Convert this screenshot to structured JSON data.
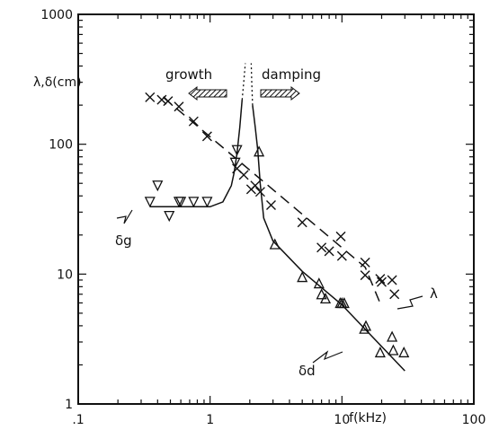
{
  "chart_data": {
    "type": "scatter",
    "title": "",
    "xlabel": "f(kHz)",
    "ylabel": "λ,δ(cm)",
    "xscale": "log",
    "yscale": "log",
    "xlim": [
      0.1,
      100
    ],
    "ylim": [
      1,
      1000
    ],
    "grid": false,
    "x_tick_labels": [
      ".1",
      "1",
      "10",
      "100"
    ],
    "y_tick_labels": [
      "1",
      "10",
      "100",
      "1000"
    ],
    "x_ticks": [
      0.1,
      1,
      10,
      100
    ],
    "y_ticks": [
      1,
      10,
      100,
      1000
    ],
    "annotations": {
      "growth": "growth",
      "damping": "damping",
      "delta_g": "δg",
      "delta_d": "δd",
      "lambda": "λ"
    },
    "series": [
      {
        "name": "λ",
        "marker": "x",
        "points": [
          [
            0.35,
            230
          ],
          [
            0.43,
            220
          ],
          [
            0.48,
            215
          ],
          [
            0.58,
            195
          ],
          [
            0.75,
            150
          ],
          [
            0.95,
            115
          ],
          [
            1.6,
            65
          ],
          [
            1.8,
            58
          ],
          [
            2.05,
            45
          ],
          [
            2.2,
            48
          ],
          [
            2.4,
            43
          ],
          [
            2.9,
            34
          ],
          [
            5.0,
            25
          ],
          [
            7.0,
            16
          ],
          [
            8.0,
            15
          ],
          [
            9.8,
            19.5
          ],
          [
            10,
            13.8
          ],
          [
            15,
            12.3
          ],
          [
            15,
            9.8
          ],
          [
            19.5,
            9.2
          ],
          [
            20,
            8.7
          ],
          [
            24,
            9
          ],
          [
            25,
            7
          ]
        ]
      },
      {
        "name": "δg",
        "marker": "triangle-down",
        "points": [
          [
            0.35,
            36
          ],
          [
            0.4,
            48
          ],
          [
            0.49,
            28
          ],
          [
            0.58,
            36
          ],
          [
            0.6,
            36
          ],
          [
            0.75,
            36
          ],
          [
            0.95,
            36
          ],
          [
            1.55,
            72
          ],
          [
            1.6,
            90
          ]
        ]
      },
      {
        "name": "δd",
        "marker": "triangle-up",
        "points": [
          [
            2.35,
            88
          ],
          [
            3.1,
            17
          ],
          [
            5.0,
            9.5
          ],
          [
            6.7,
            8.5
          ],
          [
            7.0,
            7
          ],
          [
            7.5,
            6.5
          ],
          [
            9.7,
            6
          ],
          [
            10,
            6
          ],
          [
            10.4,
            6
          ],
          [
            14.8,
            3.8
          ],
          [
            15.2,
            4
          ],
          [
            19.5,
            2.5
          ],
          [
            24,
            3.3
          ],
          [
            24.5,
            2.6
          ],
          [
            29.5,
            2.5
          ]
        ]
      },
      {
        "name": "λ fit",
        "style": "dashed",
        "points": [
          [
            0.44,
            230
          ],
          [
            15,
            11.3
          ],
          [
            20,
            5.6
          ]
        ]
      },
      {
        "name": "δg fit",
        "style": "solid",
        "points": [
          [
            0.35,
            33
          ],
          [
            1.0,
            33
          ],
          [
            1.25,
            36
          ],
          [
            1.45,
            48
          ],
          [
            1.52,
            60
          ],
          [
            1.6,
            85
          ],
          [
            1.68,
            135
          ],
          [
            1.75,
            220
          ]
        ]
      },
      {
        "name": "δd fit",
        "style": "solid",
        "points": [
          [
            2.1,
            200
          ],
          [
            2.2,
            135
          ],
          [
            2.3,
            90
          ],
          [
            2.4,
            50
          ],
          [
            2.55,
            27
          ],
          [
            3.0,
            18
          ],
          [
            5.0,
            10.5
          ],
          [
            10,
            5.8
          ],
          [
            30,
            1.8
          ]
        ]
      }
    ]
  }
}
